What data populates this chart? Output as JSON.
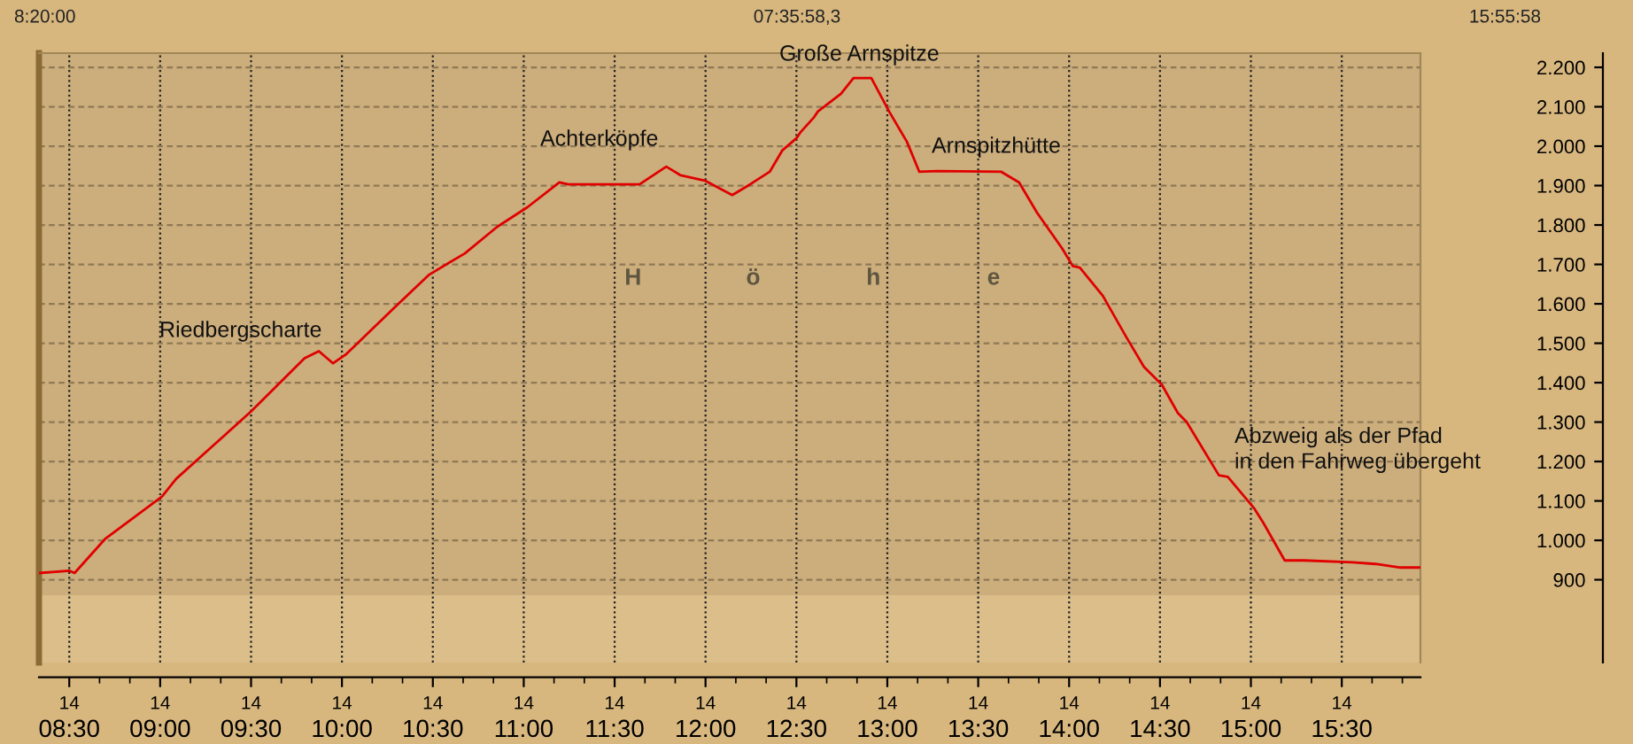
{
  "chart_data": {
    "type": "line",
    "ylabel": "Höhe",
    "annotations": [
      "8:20:00",
      "07:35:58,3",
      "15:55:58",
      "Riedbergscharte",
      "Achterköpfe",
      "Große Arnspitze",
      "Arnspitzhütte",
      "Abzweig als der Pfad\nin den Fahrweg übergeht",
      "14",
      "14",
      "14",
      "14",
      "14",
      "14",
      "14",
      "14",
      "14",
      "14",
      "14",
      "14",
      "14",
      "14",
      "14"
    ],
    "series": [
      {
        "color": "#e00000",
        "x": [
          8.334,
          8.5,
          8.529,
          8.696,
          9.01,
          9.088,
          9.5,
          9.794,
          9.873,
          9.951,
          10.02,
          10.294,
          10.48,
          10.676,
          10.853,
          11.02,
          11.196,
          11.245,
          11.51,
          11.637,
          11.784,
          11.863,
          12.0,
          12.147,
          12.245,
          12.353,
          12.422,
          12.5,
          12.52,
          12.598,
          12.618,
          12.745,
          12.814,
          12.912,
          13.01,
          13.108,
          13.176,
          13.275,
          13.627,
          13.725,
          13.824,
          13.961,
          14.02,
          14.059,
          14.186,
          14.314,
          14.412,
          14.51,
          14.598,
          14.647,
          14.824,
          14.873,
          15.02,
          15.069,
          15.186,
          15.294,
          15.529,
          15.686,
          15.824,
          15.93
        ],
        "values": [
          917,
          923,
          917,
          1003,
          1111,
          1156,
          1327,
          1462,
          1480,
          1449,
          1471,
          1593,
          1674,
          1728,
          1795,
          1845,
          1908,
          1903,
          1903,
          1903,
          1948,
          1926,
          1912,
          1876,
          1903,
          1935,
          1989,
          2020,
          2034,
          2074,
          2088,
          2133,
          2173,
          2173,
          2088,
          2011,
          1935,
          1937,
          1935,
          1908,
          1831,
          1741,
          1696,
          1692,
          1620,
          1516,
          1440,
          1395,
          1323,
          1300,
          1165,
          1161,
          1080,
          1044,
          949,
          949,
          945,
          940,
          931,
          931
        ]
      }
    ],
    "xlim": [
      8.3333,
      15.9328
    ],
    "xticks": [
      {
        "value": 8.5,
        "label": "08:30"
      },
      {
        "value": 9.0,
        "label": "09:00"
      },
      {
        "value": 9.5,
        "label": "09:30"
      },
      {
        "value": 10.0,
        "label": "10:00"
      },
      {
        "value": 10.5,
        "label": "10:30"
      },
      {
        "value": 11.0,
        "label": "11:00"
      },
      {
        "value": 11.5,
        "label": "11:30"
      },
      {
        "value": 12.0,
        "label": "12:00"
      },
      {
        "value": 12.5,
        "label": "12:30"
      },
      {
        "value": 13.0,
        "label": "13:00"
      },
      {
        "value": 13.5,
        "label": "13:30"
      },
      {
        "value": 14.0,
        "label": "14:00"
      },
      {
        "value": 14.5,
        "label": "14:30"
      },
      {
        "value": 15.0,
        "label": "15:00"
      },
      {
        "value": 15.5,
        "label": "15:30"
      },
      {
        "value": 8.6667,
        "label": null
      },
      {
        "value": 8.8333,
        "label": null
      },
      {
        "value": 9.1667,
        "label": null
      },
      {
        "value": 9.3333,
        "label": null
      },
      {
        "value": 9.6667,
        "label": null
      },
      {
        "value": 9.8333,
        "label": null
      },
      {
        "value": 10.1667,
        "label": null
      },
      {
        "value": 10.3333,
        "label": null
      },
      {
        "value": 10.6667,
        "label": null
      },
      {
        "value": 10.8333,
        "label": null
      },
      {
        "value": 11.1667,
        "label": null
      },
      {
        "value": 11.3333,
        "label": null
      },
      {
        "value": 11.6667,
        "label": null
      },
      {
        "value": 11.8333,
        "label": null
      },
      {
        "value": 12.1667,
        "label": null
      },
      {
        "value": 12.3333,
        "label": null
      },
      {
        "value": 12.6667,
        "label": null
      },
      {
        "value": 12.8333,
        "label": null
      },
      {
        "value": 13.1667,
        "label": null
      },
      {
        "value": 13.3333,
        "label": null
      },
      {
        "value": 13.6667,
        "label": null
      },
      {
        "value": 13.8333,
        "label": null
      },
      {
        "value": 14.1667,
        "label": null
      },
      {
        "value": 14.3333,
        "label": null
      },
      {
        "value": 14.6667,
        "label": null
      },
      {
        "value": 14.8333,
        "label": null
      },
      {
        "value": 15.1667,
        "label": null
      },
      {
        "value": 15.3333,
        "label": null
      },
      {
        "value": 15.6667,
        "label": null
      },
      {
        "value": 15.8333,
        "label": null
      }
    ],
    "ylim": [
      690,
      2236
    ],
    "yticks": [
      900,
      {
        "value": 1000,
        "label": "1.000"
      },
      {
        "value": 1100,
        "label": "1.100"
      },
      {
        "value": 1200,
        "label": "1.200"
      },
      {
        "value": 1300,
        "label": "1.300"
      },
      {
        "value": 1400,
        "label": "1.400"
      },
      {
        "value": 1500,
        "label": "1.500"
      },
      {
        "value": 1600,
        "label": "1.600"
      },
      {
        "value": 1700,
        "label": "1.700"
      },
      {
        "value": 1800,
        "label": "1.800"
      },
      {
        "value": 1900,
        "label": "1.900"
      },
      {
        "value": 2000,
        "label": "2.000"
      },
      {
        "value": 2100,
        "label": "2.100"
      },
      {
        "value": 2200,
        "label": "2.200"
      }
    ],
    "bands": [
      {
        "axis": "y",
        "from": 860,
        "to": 2236,
        "color": "#ccad7c"
      },
      {
        "axis": "y",
        "from": 690,
        "to": 860,
        "color": "#dcbe8b"
      }
    ],
    "grid": true,
    "marker": "none",
    "line_style": "solid"
  }
}
